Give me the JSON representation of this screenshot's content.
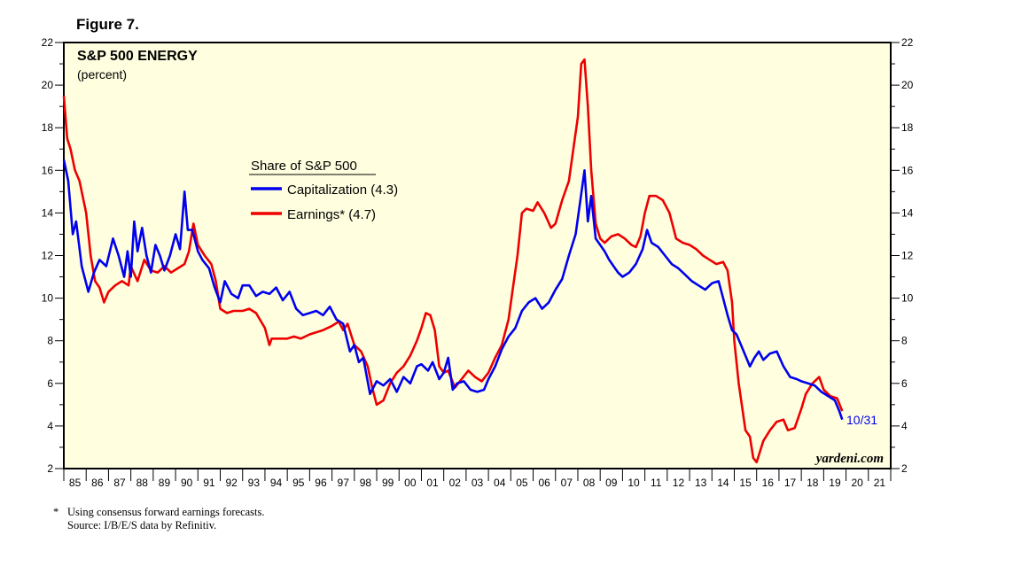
{
  "figure_label": "Figure 7.",
  "footnote": {
    "marker": "*",
    "line1": "Using consensus forward earnings forecasts.",
    "line2": "Source: I/B/E/S data by Refinitiv."
  },
  "colors": {
    "plot_background": "#ffffe0",
    "capitalization": "#0000ee",
    "earnings": "#ee0000"
  },
  "chart_data": {
    "type": "line",
    "title": "S&P 500 ENERGY",
    "subtitle": "(percent)",
    "legend_title": "Share of S&P 500",
    "legend_placement": "center-left",
    "watermark": "yardeni.com",
    "end_annotation": "10/31",
    "ylim": [
      2,
      22
    ],
    "yticks": [
      2,
      4,
      6,
      8,
      10,
      12,
      14,
      16,
      18,
      20,
      22
    ],
    "ytick_labels": [
      "2",
      "4",
      "6",
      "8",
      "10",
      "12",
      "14",
      "16",
      "18",
      "20",
      "22"
    ],
    "xlim": [
      1985,
      2022
    ],
    "xtick_labels": [
      "85",
      "86",
      "87",
      "88",
      "89",
      "90",
      "91",
      "92",
      "93",
      "94",
      "95",
      "96",
      "97",
      "98",
      "99",
      "00",
      "01",
      "02",
      "03",
      "04",
      "05",
      "06",
      "07",
      "08",
      "09",
      "10",
      "11",
      "12",
      "13",
      "14",
      "15",
      "16",
      "17",
      "18",
      "19",
      "20",
      "21"
    ],
    "series": [
      {
        "name": "Capitalization (4.3)",
        "color": "#0000ee",
        "x": [
          1985.0,
          1985.2,
          1985.4,
          1985.55,
          1985.8,
          1986.1,
          1986.35,
          1986.6,
          1986.9,
          1987.2,
          1987.45,
          1987.7,
          1987.85,
          1988.0,
          1988.15,
          1988.3,
          1988.5,
          1988.7,
          1988.9,
          1989.1,
          1989.3,
          1989.5,
          1989.75,
          1990.0,
          1990.2,
          1990.4,
          1990.55,
          1990.75,
          1991.0,
          1991.2,
          1991.5,
          1991.75,
          1992.0,
          1992.2,
          1992.5,
          1992.8,
          1993.0,
          1993.3,
          1993.6,
          1993.9,
          1994.2,
          1994.5,
          1994.8,
          1995.1,
          1995.4,
          1995.7,
          1996.0,
          1996.3,
          1996.6,
          1996.9,
          1997.2,
          1997.5,
          1997.8,
          1998.0,
          1998.2,
          1998.4,
          1998.7,
          1999.0,
          1999.3,
          1999.6,
          1999.9,
          2000.2,
          2000.5,
          2000.8,
          2001.0,
          2001.3,
          2001.5,
          2001.8,
          2002.0,
          2002.2,
          2002.4,
          2002.6,
          2002.9,
          2003.2,
          2003.5,
          2003.8,
          2004.0,
          2004.3,
          2004.6,
          2004.9,
          2005.2,
          2005.5,
          2005.8,
          2006.1,
          2006.4,
          2006.7,
          2007.0,
          2007.3,
          2007.6,
          2007.9,
          2008.1,
          2008.3,
          2008.45,
          2008.6,
          2008.8,
          2009.0,
          2009.2,
          2009.4,
          2009.6,
          2009.8,
          2010.0,
          2010.3,
          2010.6,
          2010.9,
          2011.1,
          2011.3,
          2011.6,
          2011.9,
          2012.2,
          2012.5,
          2012.8,
          2013.1,
          2013.4,
          2013.7,
          2014.0,
          2014.3,
          2014.5,
          2014.7,
          2014.9,
          2015.1,
          2015.3,
          2015.5,
          2015.7,
          2015.9,
          2016.1,
          2016.3,
          2016.6,
          2016.9,
          2017.2,
          2017.5,
          2017.8,
          2018.0,
          2018.3,
          2018.6,
          2018.9,
          2019.2,
          2019.5,
          2019.7,
          2019.83
        ],
        "y": [
          16.5,
          15.5,
          13.0,
          13.6,
          11.5,
          10.3,
          11.2,
          11.8,
          11.5,
          12.8,
          12.0,
          11.0,
          12.2,
          11.0,
          13.6,
          12.2,
          13.3,
          12.0,
          11.2,
          12.5,
          12.0,
          11.3,
          12.0,
          13.0,
          12.3,
          15.0,
          13.2,
          13.2,
          12.2,
          11.8,
          11.4,
          10.5,
          9.8,
          10.8,
          10.2,
          10.0,
          10.6,
          10.6,
          10.1,
          10.3,
          10.2,
          10.5,
          9.9,
          10.3,
          9.5,
          9.2,
          9.3,
          9.4,
          9.2,
          9.6,
          9.0,
          8.8,
          7.5,
          7.8,
          7.0,
          7.2,
          5.5,
          6.1,
          5.9,
          6.2,
          5.6,
          6.3,
          6.0,
          6.8,
          6.9,
          6.6,
          7.0,
          6.2,
          6.5,
          7.2,
          5.7,
          6.0,
          6.1,
          5.7,
          5.6,
          5.7,
          6.2,
          6.8,
          7.6,
          8.2,
          8.6,
          9.4,
          9.8,
          10.0,
          9.5,
          9.8,
          10.4,
          10.9,
          12.0,
          13.0,
          14.5,
          16.0,
          13.6,
          14.8,
          12.8,
          12.5,
          12.2,
          11.8,
          11.5,
          11.2,
          11.0,
          11.2,
          11.6,
          12.3,
          13.2,
          12.6,
          12.4,
          12.0,
          11.6,
          11.4,
          11.1,
          10.8,
          10.6,
          10.4,
          10.7,
          10.8,
          10.0,
          9.2,
          8.5,
          8.3,
          7.8,
          7.3,
          6.8,
          7.2,
          7.5,
          7.1,
          7.4,
          7.5,
          6.8,
          6.3,
          6.2,
          6.1,
          6.0,
          5.9,
          5.6,
          5.4,
          5.2,
          4.7,
          4.3
        ],
        "end_value": 4.3
      },
      {
        "name": "Earnings* (4.7)",
        "color": "#ee0000",
        "x": [
          1985.0,
          1985.15,
          1985.3,
          1985.5,
          1985.7,
          1986.0,
          1986.2,
          1986.4,
          1986.6,
          1986.8,
          1987.0,
          1987.3,
          1987.6,
          1987.9,
          1988.0,
          1988.3,
          1988.6,
          1988.9,
          1989.2,
          1989.5,
          1989.8,
          1990.1,
          1990.4,
          1990.6,
          1990.8,
          1991.0,
          1991.3,
          1991.6,
          1991.8,
          1992.0,
          1992.3,
          1992.6,
          1993.0,
          1993.3,
          1993.6,
          1994.0,
          1994.2,
          1994.3,
          1994.6,
          1995.0,
          1995.3,
          1995.6,
          1996.0,
          1996.3,
          1996.6,
          1997.0,
          1997.3,
          1997.5,
          1997.7,
          1998.0,
          1998.3,
          1998.6,
          1998.8,
          1999.0,
          1999.3,
          1999.6,
          1999.9,
          2000.2,
          2000.5,
          2000.8,
          2001.0,
          2001.2,
          2001.4,
          2001.6,
          2001.8,
          2002.0,
          2002.2,
          2002.5,
          2002.8,
          2003.1,
          2003.4,
          2003.7,
          2004.0,
          2004.3,
          2004.6,
          2004.9,
          2005.1,
          2005.3,
          2005.5,
          2005.7,
          2006.0,
          2006.2,
          2006.5,
          2006.8,
          2007.0,
          2007.3,
          2007.6,
          2007.8,
          2008.0,
          2008.15,
          2008.3,
          2008.45,
          2008.6,
          2008.8,
          2009.0,
          2009.2,
          2009.5,
          2009.8,
          2010.1,
          2010.4,
          2010.6,
          2010.8,
          2011.0,
          2011.2,
          2011.5,
          2011.8,
          2012.1,
          2012.4,
          2012.7,
          2013.0,
          2013.3,
          2013.6,
          2013.9,
          2014.2,
          2014.5,
          2014.7,
          2014.9,
          2015.0,
          2015.2,
          2015.5,
          2015.7,
          2015.85,
          2016.0,
          2016.3,
          2016.6,
          2016.9,
          2017.2,
          2017.4,
          2017.7,
          2018.0,
          2018.2,
          2018.5,
          2018.8,
          2019.0,
          2019.3,
          2019.6,
          2019.83
        ],
        "y": [
          19.5,
          17.5,
          17.0,
          16.0,
          15.5,
          14.0,
          12.0,
          10.8,
          10.5,
          9.8,
          10.3,
          10.6,
          10.8,
          10.6,
          11.5,
          10.8,
          11.8,
          11.3,
          11.2,
          11.5,
          11.2,
          11.4,
          11.6,
          12.2,
          13.5,
          12.5,
          12.0,
          11.6,
          10.8,
          9.5,
          9.3,
          9.4,
          9.4,
          9.5,
          9.3,
          8.6,
          7.8,
          8.1,
          8.1,
          8.1,
          8.2,
          8.1,
          8.3,
          8.4,
          8.5,
          8.7,
          8.9,
          8.5,
          8.8,
          7.8,
          7.5,
          6.8,
          5.8,
          5.0,
          5.2,
          6.0,
          6.5,
          6.8,
          7.3,
          8.0,
          8.6,
          9.3,
          9.2,
          8.5,
          6.8,
          6.5,
          6.6,
          5.8,
          6.2,
          6.6,
          6.3,
          6.1,
          6.5,
          7.2,
          7.8,
          9.0,
          10.5,
          12.0,
          14.0,
          14.2,
          14.1,
          14.5,
          14.0,
          13.3,
          13.5,
          14.6,
          15.5,
          17.0,
          18.5,
          21.0,
          21.2,
          19.0,
          16.0,
          13.5,
          12.8,
          12.6,
          12.9,
          13.0,
          12.8,
          12.5,
          12.4,
          12.9,
          14.0,
          14.8,
          14.8,
          14.6,
          14.0,
          12.8,
          12.6,
          12.5,
          12.3,
          12.0,
          11.8,
          11.6,
          11.7,
          11.3,
          9.8,
          8.0,
          6.0,
          3.8,
          3.5,
          2.5,
          2.3,
          3.3,
          3.8,
          4.2,
          4.3,
          3.8,
          3.9,
          4.8,
          5.5,
          6.0,
          6.3,
          5.7,
          5.4,
          5.3,
          4.7
        ],
        "end_value": 4.7
      }
    ]
  }
}
